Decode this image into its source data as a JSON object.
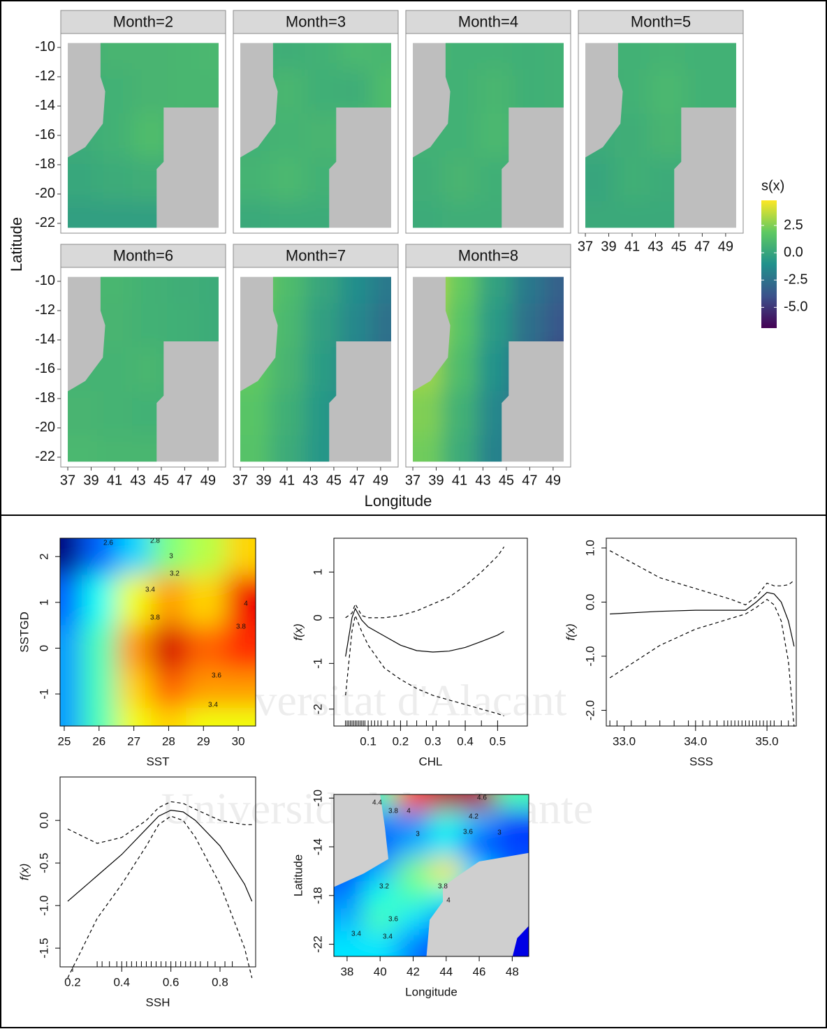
{
  "watermark": [
    "Universitat d'Alacant",
    "Universidad de Alicante"
  ],
  "chart_data": [
    {
      "type": "facet-heatmap",
      "facets": [
        "Month=2",
        "Month=3",
        "Month=4",
        "Month=5",
        "Month=6",
        "Month=7",
        "Month=8"
      ],
      "xlabel": "Longitude",
      "ylabel": "Latitude",
      "xlim": [
        36.4,
        50.5
      ],
      "ylim": [
        -22.67,
        -9.05
      ],
      "xticks": [
        37,
        39,
        41,
        43,
        45,
        47,
        49
      ],
      "yticks": [
        -10,
        -12,
        -14,
        -16,
        -18,
        -20,
        -22
      ],
      "x": [
        38,
        41,
        44,
        47,
        49.5
      ],
      "y": [
        -10,
        -13,
        -16,
        -19,
        -22
      ],
      "values": [
        [
          [
            0.5,
            0.8,
            0.8,
            0.9,
            1.0
          ],
          [
            0.5,
            0.6,
            0.8,
            0.9,
            0.9
          ],
          [
            0.3,
            0.6,
            1.2,
            0.8,
            0.8
          ],
          [
            0.1,
            0.3,
            0.4,
            0.5,
            0.5
          ],
          [
            -0.3,
            -0.3,
            -0.3,
            -0.3,
            -0.3
          ]
        ],
        [
          [
            0.6,
            0.4,
            0.6,
            1.0,
            0.9
          ],
          [
            0.6,
            0.9,
            0.5,
            0.4,
            1.2
          ],
          [
            0.6,
            0.7,
            0.8,
            1.0,
            1.1
          ],
          [
            0.7,
            1.0,
            0.6,
            0.6,
            0.6
          ],
          [
            0.2,
            0.3,
            0.3,
            0.3,
            0.3
          ]
        ],
        [
          [
            0.8,
            0.6,
            0.6,
            0.5,
            0.6
          ],
          [
            0.6,
            0.6,
            0.9,
            0.5,
            0.6
          ],
          [
            0.6,
            0.6,
            1.0,
            0.6,
            0.6
          ],
          [
            0.4,
            0.8,
            0.5,
            0.5,
            0.5
          ],
          [
            0.3,
            0.4,
            0.4,
            0.4,
            0.4
          ]
        ],
        [
          [
            0.6,
            0.6,
            0.7,
            0.6,
            0.6
          ],
          [
            0.5,
            0.6,
            1.0,
            0.6,
            0.6
          ],
          [
            0.3,
            0.4,
            0.8,
            0.6,
            0.6
          ],
          [
            0.0,
            0.5,
            0.3,
            0.3,
            0.3
          ],
          [
            0.2,
            0.2,
            0.2,
            0.2,
            0.2
          ]
        ],
        [
          [
            0.9,
            0.9,
            0.6,
            0.4,
            0.3
          ],
          [
            0.9,
            0.8,
            0.6,
            0.5,
            0.3
          ],
          [
            0.7,
            0.7,
            0.9,
            0.4,
            0.3
          ],
          [
            0.8,
            0.7,
            0.6,
            0.6,
            0.6
          ],
          [
            1.0,
            0.9,
            0.9,
            0.9,
            0.9
          ]
        ],
        [
          [
            2.3,
            1.2,
            0.0,
            -1.2,
            -2.2
          ],
          [
            2.0,
            1.0,
            -0.3,
            -1.5,
            -2.6
          ],
          [
            1.9,
            0.8,
            -0.5,
            -1.8,
            -3.0
          ],
          [
            1.6,
            0.5,
            -0.7,
            -1.8,
            -1.8
          ],
          [
            1.5,
            0.3,
            -0.8,
            -0.8,
            -0.8
          ]
        ],
        [
          [
            3.8,
            2.0,
            -0.2,
            -2.2,
            -3.3
          ],
          [
            3.5,
            1.6,
            -0.6,
            -2.6,
            -3.8
          ],
          [
            3.0,
            1.2,
            -1.0,
            -3.0,
            -5.0
          ],
          [
            2.5,
            0.6,
            -1.5,
            -3.0,
            -3.0
          ],
          [
            2.2,
            0.3,
            -1.8,
            -1.8,
            -1.8
          ]
        ]
      ],
      "legend_title": "s(x)",
      "clim": [
        -6.9,
        4.8
      ],
      "cticks": [
        {
          "value": 2.5,
          "label": "2.5"
        },
        {
          "value": 0,
          "label": "0.0"
        },
        -2.5,
        {
          "value": -5,
          "label": "-5.0"
        }
      ],
      "colormap": [
        "#440154",
        "#3b528b",
        "#21918c",
        "#5ec962",
        "#fde725"
      ]
    },
    {
      "type": "contour",
      "xlabel": "SST",
      "ylabel": "SSTGD",
      "xlim": [
        24.88,
        30.5
      ],
      "ylim": [
        -1.7,
        2.4
      ],
      "xticks": [
        25,
        26,
        27,
        28,
        29,
        30
      ],
      "yticks": [
        -1,
        0,
        1,
        2
      ],
      "x": [
        25,
        26,
        27,
        28,
        29,
        30.3
      ],
      "y": [
        2.2,
        1,
        0,
        -1,
        -1.6
      ],
      "values": [
        [
          2.3,
          2.7,
          2.9,
          3.2,
          3.3,
          3.5
        ],
        [
          2.7,
          3.0,
          3.4,
          3.6,
          3.5,
          3.9
        ],
        [
          2.8,
          3.1,
          3.6,
          3.95,
          3.7,
          3.8
        ],
        [
          2.8,
          3.1,
          3.5,
          3.7,
          3.6,
          3.6
        ],
        [
          2.8,
          3.1,
          3.4,
          3.5,
          3.4,
          3.4
        ]
      ],
      "zlim": [
        2.3,
        4.1
      ],
      "colormap": [
        "#00007f",
        "#0000ff",
        "#007fff",
        "#00ffff",
        "#7fff7f",
        "#ffff00",
        "#ff7f00",
        "#ff0000",
        "#7f0000"
      ],
      "contour_labels": [
        2.6,
        2.8,
        3,
        3.2,
        3.4,
        3.8,
        3.6,
        3.4,
        4,
        3.8
      ]
    },
    {
      "type": "line",
      "xlabel": "CHL",
      "ylabel": "f(x)",
      "xlim": [
        -0.006,
        0.592
      ],
      "ylim": [
        -2.37,
        1.74
      ],
      "xticks": [
        0.1,
        0.2,
        0.3,
        0.4,
        0.5
      ],
      "yticks": [
        -2,
        -1,
        0,
        1
      ],
      "x": [
        0.03,
        0.05,
        0.06,
        0.08,
        0.1,
        0.15,
        0.2,
        0.25,
        0.3,
        0.35,
        0.4,
        0.45,
        0.5,
        0.52
      ],
      "series": [
        {
          "color": "#000000",
          "dash": false,
          "values": [
            -0.85,
            0.0,
            0.2,
            -0.05,
            -0.2,
            -0.4,
            -0.6,
            -0.72,
            -0.75,
            -0.73,
            -0.65,
            -0.52,
            -0.38,
            -0.3
          ]
        },
        {
          "color": "#000000",
          "dash": true,
          "values": [
            0.0,
            0.1,
            0.3,
            0.05,
            0.0,
            0.0,
            0.05,
            0.15,
            0.3,
            0.45,
            0.7,
            1.0,
            1.35,
            1.55
          ]
        },
        {
          "color": "#000000",
          "dash": true,
          "values": [
            -1.7,
            -0.3,
            0.05,
            -0.3,
            -0.6,
            -1.1,
            -1.35,
            -1.55,
            -1.7,
            -1.8,
            -1.9,
            -2.0,
            -2.1,
            -2.15
          ]
        }
      ],
      "rug": [
        0.03,
        0.035,
        0.04,
        0.045,
        0.05,
        0.055,
        0.06,
        0.065,
        0.07,
        0.075,
        0.08,
        0.085,
        0.09,
        0.1,
        0.11,
        0.12,
        0.13,
        0.14,
        0.16,
        0.18,
        0.2,
        0.22,
        0.25,
        0.28,
        0.31,
        0.35,
        0.4,
        0.45,
        0.5
      ]
    },
    {
      "type": "line",
      "xlabel": "SSS",
      "ylabel": "f(x)",
      "xlim": [
        32.75,
        35.41
      ],
      "ylim": [
        -2.29,
        1.18
      ],
      "xticks": [
        {
          "value": 33,
          "label": "33.0"
        },
        {
          "value": 34,
          "label": "34.0"
        },
        {
          "value": 35,
          "label": "35.0"
        }
      ],
      "yticks": [
        {
          "value": -2,
          "label": "-2.0"
        },
        {
          "value": -1,
          "label": "-1.0"
        },
        {
          "value": 0,
          "label": "0.0"
        },
        {
          "value": 1,
          "label": "1.0"
        }
      ],
      "x": [
        32.8,
        33.5,
        34,
        34.5,
        34.7,
        34.85,
        35,
        35.1,
        35.2,
        35.3,
        35.38
      ],
      "series": [
        {
          "color": "#000000",
          "dash": false,
          "values": [
            -0.22,
            -0.17,
            -0.15,
            -0.15,
            -0.15,
            0.0,
            0.18,
            0.15,
            0.0,
            -0.35,
            -0.82
          ]
        },
        {
          "color": "#000000",
          "dash": true,
          "values": [
            0.95,
            0.45,
            0.25,
            0.05,
            -0.05,
            0.1,
            0.35,
            0.3,
            0.3,
            0.32,
            0.4
          ]
        },
        {
          "color": "#000000",
          "dash": true,
          "values": [
            -1.4,
            -0.8,
            -0.5,
            -0.3,
            -0.22,
            -0.1,
            0.05,
            -0.05,
            -0.35,
            -1.1,
            -2.3
          ]
        }
      ],
      "rug": [
        32.8,
        32.9,
        33.1,
        33.3,
        33.5,
        33.7,
        33.9,
        34.0,
        34.1,
        34.2,
        34.3,
        34.4,
        34.45,
        34.5,
        34.55,
        34.6,
        34.65,
        34.7,
        34.75,
        34.8,
        34.85,
        34.9,
        34.95,
        35.0,
        35.05,
        35.1,
        35.2,
        35.3
      ]
    },
    {
      "type": "line",
      "xlabel": "SSH",
      "ylabel": "f(x)",
      "xlim": [
        0.149,
        0.945
      ],
      "ylim": [
        -1.72,
        0.51
      ],
      "xticks": [
        0.2,
        0.4,
        0.6,
        0.8
      ],
      "yticks": [
        {
          "value": -1.5,
          "label": "-1.5"
        },
        {
          "value": -1,
          "label": "-1.0"
        },
        {
          "value": -0.5,
          "label": "-0.5"
        },
        {
          "value": 0,
          "label": "0.0"
        }
      ],
      "x": [
        0.18,
        0.3,
        0.4,
        0.5,
        0.55,
        0.6,
        0.65,
        0.7,
        0.8,
        0.9,
        0.93
      ],
      "series": [
        {
          "color": "#000000",
          "dash": false,
          "values": [
            -0.95,
            -0.65,
            -0.4,
            -0.1,
            0.05,
            0.12,
            0.1,
            0.0,
            -0.3,
            -0.75,
            -0.95
          ]
        },
        {
          "color": "#000000",
          "dash": true,
          "values": [
            -0.1,
            -0.27,
            -0.2,
            0.0,
            0.15,
            0.22,
            0.2,
            0.13,
            0.0,
            -0.05,
            -0.05
          ]
        },
        {
          "color": "#000000",
          "dash": true,
          "values": [
            -1.85,
            -1.15,
            -0.75,
            -0.3,
            -0.05,
            0.05,
            0.0,
            -0.2,
            -0.75,
            -1.5,
            -1.85
          ]
        }
      ],
      "rug": [
        0.3,
        0.32,
        0.35,
        0.38,
        0.4,
        0.42,
        0.44,
        0.46,
        0.48,
        0.5,
        0.52,
        0.54,
        0.56,
        0.58,
        0.6,
        0.62,
        0.64,
        0.66,
        0.68,
        0.7,
        0.72,
        0.75,
        0.78,
        0.82,
        0.85
      ]
    },
    {
      "type": "contour",
      "xlabel": "Longitude",
      "ylabel": "Latitude",
      "xlim": [
        37.2,
        49.0
      ],
      "ylim": [
        -23.0,
        -9.7
      ],
      "xticks": [
        38,
        40,
        42,
        44,
        46,
        48
      ],
      "yticks": [
        -22,
        -18,
        -14,
        -10
      ],
      "x": [
        38,
        40,
        42,
        44,
        46,
        48
      ],
      "y": [
        -10,
        -12,
        -14,
        -16,
        -18,
        -20,
        -22
      ],
      "values": [
        [
          3.3,
          3.6,
          4.3,
          4.6,
          4.6,
          3.6
        ],
        [
          3.2,
          3.2,
          3.2,
          3.5,
          3.3,
          3.0
        ],
        [
          3.1,
          3.1,
          3.3,
          3.4,
          3.0,
          3.1
        ],
        [
          3.1,
          3.3,
          3.7,
          4.0,
          3.4,
          3.1
        ],
        [
          3.2,
          3.5,
          3.6,
          3.5,
          3.2,
          3.0
        ],
        [
          3.3,
          3.6,
          3.4,
          3.2,
          3.0,
          2.9
        ],
        [
          3.4,
          3.4,
          3.2,
          3.0,
          2.9,
          2.9
        ]
      ],
      "zlim": [
        2.7,
        4.7
      ],
      "colormap": [
        "#00007f",
        "#0000ff",
        "#007fff",
        "#00ffff",
        "#7fff7f",
        "#ffff00",
        "#ff7f00",
        "#ff0000",
        "#7f0000"
      ],
      "contour_labels": [
        4.4,
        3.8,
        4,
        4.6,
        4.2,
        3.6,
        3,
        3,
        3.8,
        4,
        3.2,
        3.6,
        3.4,
        3.4
      ]
    }
  ]
}
